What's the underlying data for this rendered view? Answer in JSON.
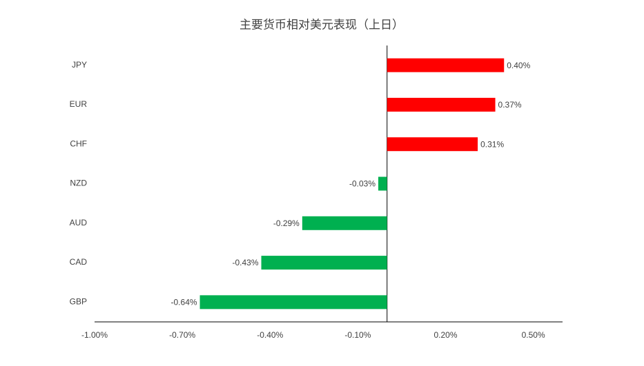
{
  "chart_data": {
    "type": "bar",
    "orientation": "horizontal",
    "title": "主要货币相对美元表现（上日）",
    "categories": [
      "JPY",
      "EUR",
      "CHF",
      "NZD",
      "AUD",
      "CAD",
      "GBP"
    ],
    "values": [
      0.4,
      0.37,
      0.31,
      -0.03,
      -0.29,
      -0.43,
      -0.64
    ],
    "value_labels": [
      "0.40%",
      "0.37%",
      "0.31%",
      "-0.03%",
      "-0.29%",
      "-0.43%",
      "-0.64%"
    ],
    "positive_color": "#ff0000",
    "negative_color": "#00b050",
    "xlim": [
      -1.0,
      0.6
    ],
    "xticks": [
      {
        "value": -1.0,
        "label": "-1.00%"
      },
      {
        "value": -0.7,
        "label": "-0.70%"
      },
      {
        "value": -0.4,
        "label": "-0.40%"
      },
      {
        "value": -0.1,
        "label": "-0.10%"
      },
      {
        "value": 0.2,
        "label": "0.20%"
      },
      {
        "value": 0.5,
        "label": "0.50%"
      }
    ],
    "grid": false
  }
}
